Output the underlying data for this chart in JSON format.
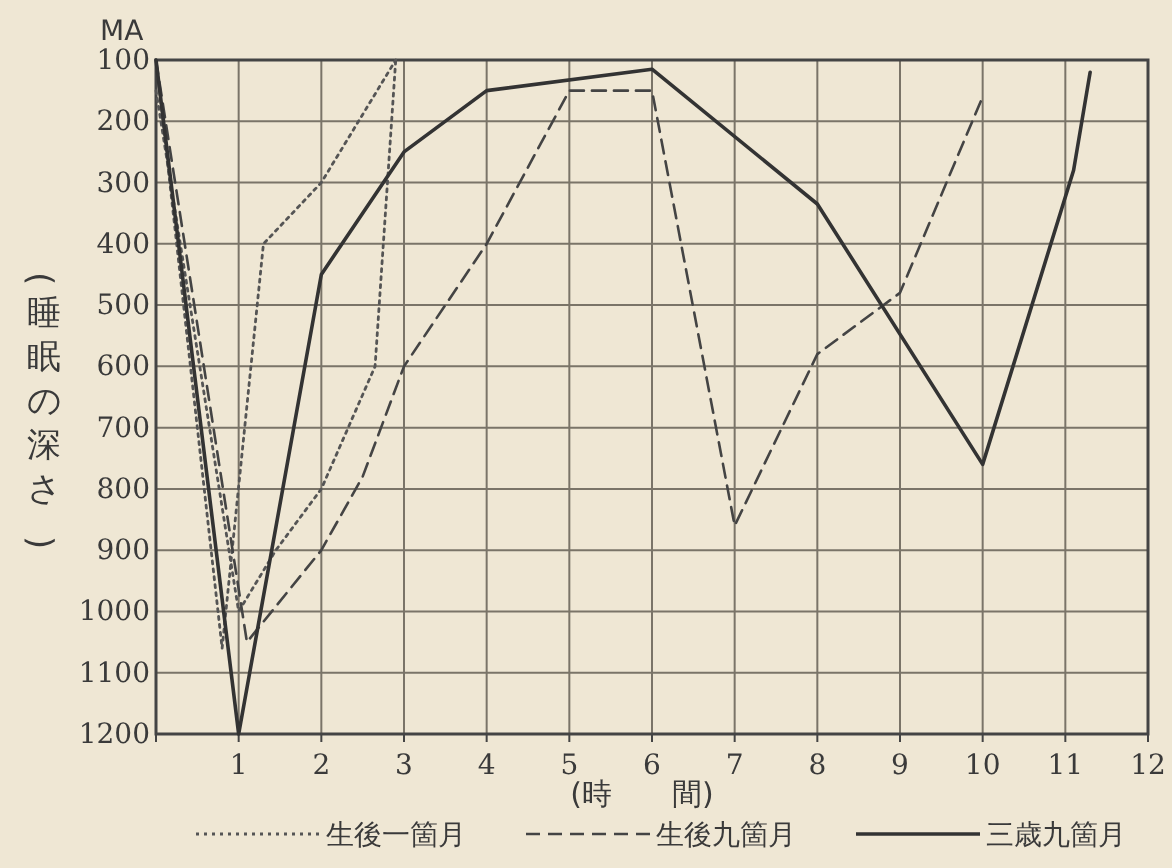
{
  "chart_data": {
    "type": "line",
    "xlabel": "(時　　間)",
    "ylabel": "(睡眠の深さ)",
    "annotations": [
      "MA"
    ],
    "xlim": [
      0,
      12
    ],
    "xticks": [
      1,
      2,
      3,
      4,
      5,
      6,
      7,
      8,
      9,
      10,
      11,
      12
    ],
    "ylim": [
      1200,
      100
    ],
    "yticks": [
      100,
      200,
      300,
      400,
      500,
      600,
      700,
      800,
      900,
      1000,
      1100,
      1200
    ],
    "grid": true,
    "legend": "bottom",
    "marker": "none",
    "series": [
      {
        "name": "生後一箇月",
        "color": "#555555",
        "line_style": "dotted",
        "x": [
          0,
          0.8,
          1.3,
          2,
          2.9
        ],
        "values": [
          100,
          1060,
          400,
          300,
          100
        ]
      },
      {
        "color": "#555555",
        "line_style": "dotted",
        "x": [
          0,
          1,
          1.45,
          2,
          2.65,
          2.9
        ],
        "values": [
          150,
          1000,
          900,
          800,
          600,
          100
        ]
      },
      {
        "name": "生後九箇月",
        "color": "#444444",
        "line_style": "dashed",
        "x": [
          0,
          1.1,
          2,
          2.5,
          3,
          4,
          5,
          6,
          7,
          8,
          9,
          10
        ],
        "values": [
          100,
          1050,
          900,
          780,
          600,
          400,
          150,
          150,
          860,
          580,
          480,
          160
        ]
      },
      {
        "name": "三歳九箇月",
        "color": "#333333",
        "line_style": "solid",
        "x": [
          0,
          1,
          2,
          3,
          4,
          6,
          8,
          10,
          11.1,
          11.3
        ],
        "values": [
          100,
          1200,
          450,
          250,
          150,
          115,
          335,
          760,
          280,
          120
        ]
      }
    ]
  }
}
